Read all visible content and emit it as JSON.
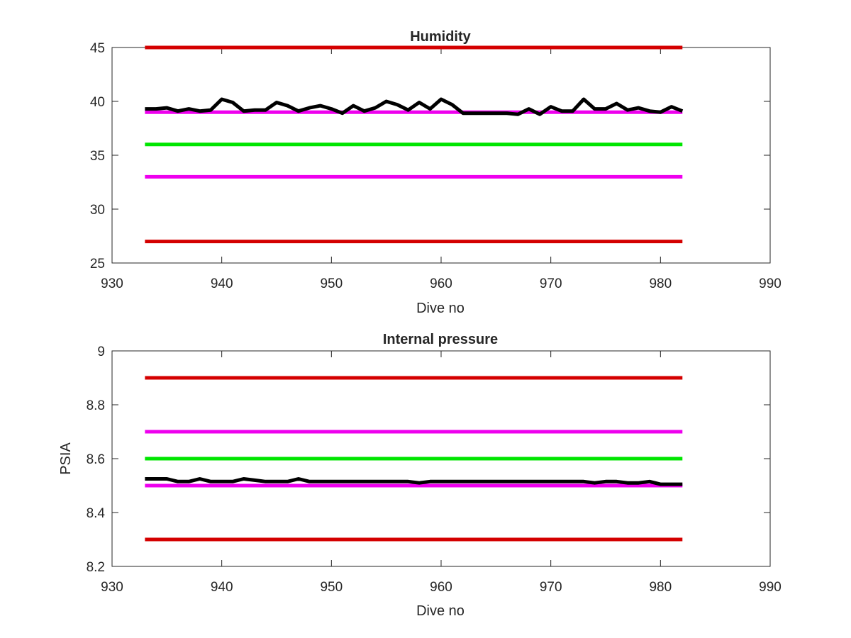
{
  "chart_data": [
    {
      "type": "line",
      "title": "Humidity",
      "xlabel": "Dive no",
      "ylabel": "",
      "xlim": [
        930,
        990
      ],
      "ylim": [
        25,
        45
      ],
      "xticks": [
        930,
        940,
        950,
        960,
        970,
        980,
        990
      ],
      "yticks": [
        25,
        30,
        35,
        40,
        45
      ],
      "xtick_labels": [
        "930",
        "940",
        "950",
        "960",
        "970",
        "980",
        "990"
      ],
      "ytick_labels": [
        "25",
        "30",
        "35",
        "40",
        "45"
      ],
      "grid": false,
      "series": [
        {
          "color": "#000000",
          "x": [
            933,
            934,
            935,
            936,
            937,
            938,
            939,
            940,
            941,
            942,
            943,
            944,
            945,
            946,
            947,
            948,
            949,
            950,
            951,
            952,
            953,
            954,
            955,
            956,
            957,
            958,
            959,
            960,
            961,
            962,
            963,
            964,
            965,
            966,
            967,
            968,
            969,
            970,
            971,
            972,
            973,
            974,
            975,
            976,
            977,
            978,
            979,
            980,
            981,
            982
          ],
          "values": [
            39.3,
            39.3,
            39.4,
            39.1,
            39.3,
            39.1,
            39.2,
            40.2,
            39.9,
            39.1,
            39.2,
            39.2,
            39.9,
            39.6,
            39.1,
            39.4,
            39.6,
            39.3,
            38.9,
            39.6,
            39.1,
            39.4,
            40.0,
            39.7,
            39.2,
            39.9,
            39.3,
            40.2,
            39.7,
            38.9,
            38.9,
            38.9,
            38.9,
            38.9,
            38.8,
            39.3,
            38.8,
            39.5,
            39.1,
            39.1,
            40.2,
            39.3,
            39.3,
            39.8,
            39.2,
            39.4,
            39.1,
            39.0,
            39.5,
            39.1
          ]
        },
        {
          "color": "#d40000",
          "x": [
            933,
            982
          ],
          "values": [
            45,
            45
          ]
        },
        {
          "color": "#ee00ee",
          "x": [
            933,
            982
          ],
          "values": [
            39,
            39
          ]
        },
        {
          "color": "#00e600",
          "x": [
            933,
            982
          ],
          "values": [
            36,
            36
          ]
        },
        {
          "color": "#ee00ee",
          "x": [
            933,
            982
          ],
          "values": [
            33,
            33
          ]
        },
        {
          "color": "#d40000",
          "x": [
            933,
            982
          ],
          "values": [
            27,
            27
          ]
        }
      ]
    },
    {
      "type": "line",
      "title": "Internal pressure",
      "xlabel": "Dive no",
      "ylabel": "PSIA",
      "xlim": [
        930,
        990
      ],
      "ylim": [
        8.2,
        9
      ],
      "xticks": [
        930,
        940,
        950,
        960,
        970,
        980,
        990
      ],
      "yticks": [
        8.2,
        8.4,
        8.6,
        8.8,
        9
      ],
      "xtick_labels": [
        "930",
        "940",
        "950",
        "960",
        "970",
        "980",
        "990"
      ],
      "ytick_labels": [
        "8.2",
        "8.4",
        "8.6",
        "8.8",
        "9"
      ],
      "grid": false,
      "series": [
        {
          "color": "#000000",
          "x": [
            933,
            934,
            935,
            936,
            937,
            938,
            939,
            940,
            941,
            942,
            943,
            944,
            945,
            946,
            947,
            948,
            949,
            950,
            951,
            952,
            953,
            954,
            955,
            956,
            957,
            958,
            959,
            960,
            961,
            962,
            963,
            964,
            965,
            966,
            967,
            968,
            969,
            970,
            971,
            972,
            973,
            974,
            975,
            976,
            977,
            978,
            979,
            980,
            981,
            982
          ],
          "values": [
            8.525,
            8.525,
            8.525,
            8.515,
            8.515,
            8.525,
            8.515,
            8.515,
            8.515,
            8.525,
            8.52,
            8.515,
            8.515,
            8.515,
            8.525,
            8.515,
            8.515,
            8.515,
            8.515,
            8.515,
            8.515,
            8.515,
            8.515,
            8.515,
            8.515,
            8.51,
            8.515,
            8.515,
            8.515,
            8.515,
            8.515,
            8.515,
            8.515,
            8.515,
            8.515,
            8.515,
            8.515,
            8.515,
            8.515,
            8.515,
            8.515,
            8.51,
            8.515,
            8.515,
            8.51,
            8.51,
            8.515,
            8.505,
            8.505,
            8.505
          ]
        },
        {
          "color": "#d40000",
          "x": [
            933,
            982
          ],
          "values": [
            8.9,
            8.9
          ]
        },
        {
          "color": "#ee00ee",
          "x": [
            933,
            982
          ],
          "values": [
            8.7,
            8.7
          ]
        },
        {
          "color": "#00e600",
          "x": [
            933,
            982
          ],
          "values": [
            8.6,
            8.6
          ]
        },
        {
          "color": "#ee00ee",
          "x": [
            933,
            982
          ],
          "values": [
            8.5,
            8.5
          ]
        },
        {
          "color": "#d40000",
          "x": [
            933,
            982
          ],
          "values": [
            8.3,
            8.3
          ]
        }
      ]
    }
  ]
}
